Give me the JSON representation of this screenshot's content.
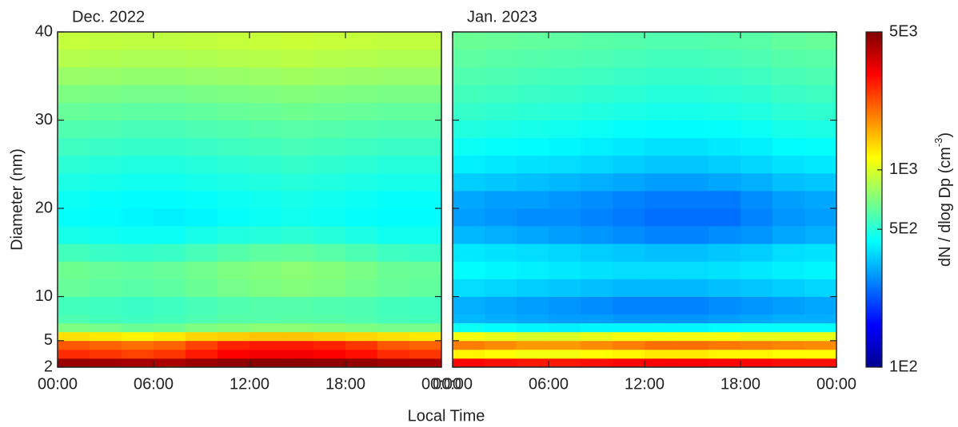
{
  "chart_data": {
    "type": "heatmap",
    "x_label": "Local Time",
    "y_label": "Diameter (nm)",
    "colorbar_label": [
      "dN / dlog Dp (cm",
      "-3",
      ")"
    ],
    "colormap": "jet",
    "color_log": true,
    "clim": [
      100,
      5000
    ],
    "cticks": [
      {
        "value": 100,
        "label": "1E2"
      },
      {
        "value": 500,
        "label": "5E2"
      },
      {
        "value": 1000,
        "label": "1E3"
      },
      {
        "value": 5000,
        "label": "5E3"
      }
    ],
    "xlim": [
      0,
      24
    ],
    "xticks": [
      {
        "value": 0,
        "label": "00:00"
      },
      {
        "value": 6,
        "label": "06:00"
      },
      {
        "value": 12,
        "label": "12:00"
      },
      {
        "value": 18,
        "label": "18:00"
      },
      {
        "value": 24,
        "label": "00:00"
      }
    ],
    "ylim": [
      2,
      40
    ],
    "yticks": [
      2,
      5,
      10,
      20,
      30,
      40
    ],
    "x_edges": [
      0,
      2,
      4,
      6,
      8,
      10,
      12,
      14,
      16,
      18,
      20,
      22,
      24
    ],
    "y_edges": [
      2,
      3,
      4,
      5,
      6,
      7,
      8,
      10,
      12,
      14,
      16,
      18,
      20,
      22,
      24,
      26,
      28,
      30,
      32,
      34,
      36,
      38,
      40
    ],
    "panels": [
      {
        "title": "Dec. 2022",
        "values": [
          [
            4500,
            4400,
            4300,
            4200,
            4500,
            4700,
            4800,
            4800,
            4700,
            4600,
            4400,
            4300
          ],
          [
            2600,
            2500,
            2400,
            2500,
            2800,
            3100,
            3200,
            3200,
            3100,
            2900,
            2600,
            2500
          ],
          [
            2200,
            2100,
            2000,
            2100,
            2400,
            2700,
            2800,
            2800,
            2700,
            2500,
            2200,
            2100
          ],
          [
            1300,
            1250,
            1200,
            1250,
            1350,
            1400,
            1450,
            1450,
            1400,
            1350,
            1300,
            1250
          ],
          [
            700,
            680,
            650,
            660,
            700,
            720,
            740,
            740,
            720,
            700,
            680,
            680
          ],
          [
            580,
            560,
            550,
            560,
            580,
            600,
            600,
            610,
            600,
            590,
            570,
            560
          ],
          [
            560,
            550,
            540,
            550,
            570,
            590,
            600,
            600,
            590,
            580,
            560,
            550
          ],
          [
            640,
            620,
            610,
            620,
            650,
            680,
            700,
            720,
            700,
            670,
            640,
            630
          ],
          [
            660,
            640,
            630,
            640,
            670,
            700,
            720,
            740,
            720,
            690,
            650,
            640
          ],
          [
            560,
            540,
            530,
            540,
            570,
            600,
            620,
            630,
            610,
            580,
            550,
            540
          ],
          [
            470,
            460,
            450,
            450,
            470,
            490,
            500,
            510,
            500,
            480,
            460,
            460
          ],
          [
            440,
            430,
            420,
            410,
            420,
            440,
            450,
            460,
            450,
            440,
            430,
            430
          ],
          [
            450,
            440,
            430,
            430,
            440,
            450,
            460,
            470,
            460,
            450,
            440,
            440
          ],
          [
            480,
            470,
            460,
            460,
            470,
            480,
            490,
            500,
            490,
            480,
            470,
            470
          ],
          [
            510,
            500,
            490,
            490,
            500,
            510,
            520,
            530,
            520,
            510,
            500,
            500
          ],
          [
            550,
            540,
            530,
            530,
            540,
            550,
            560,
            570,
            560,
            550,
            540,
            540
          ],
          [
            590,
            580,
            570,
            570,
            580,
            590,
            600,
            610,
            600,
            590,
            580,
            580
          ],
          [
            640,
            630,
            620,
            620,
            630,
            640,
            650,
            660,
            650,
            640,
            630,
            630
          ],
          [
            700,
            690,
            680,
            680,
            690,
            700,
            710,
            720,
            710,
            700,
            690,
            690
          ],
          [
            780,
            770,
            760,
            760,
            770,
            780,
            790,
            800,
            790,
            780,
            770,
            770
          ],
          [
            860,
            850,
            840,
            840,
            850,
            860,
            870,
            880,
            870,
            860,
            850,
            850
          ],
          [
            920,
            910,
            900,
            900,
            910,
            920,
            930,
            940,
            930,
            920,
            910,
            910
          ]
        ]
      },
      {
        "title": "Jan. 2023",
        "values": [
          [
            3000,
            2900,
            2800,
            2800,
            2900,
            3000,
            3100,
            3100,
            3000,
            3000,
            2900,
            2900
          ],
          [
            1200,
            1150,
            1100,
            1100,
            1150,
            1200,
            1250,
            1250,
            1200,
            1200,
            1150,
            1150
          ],
          [
            1900,
            1800,
            1700,
            1700,
            1800,
            1900,
            2000,
            2000,
            1950,
            1900,
            1850,
            1800
          ],
          [
            1100,
            1050,
            1000,
            1000,
            1050,
            1100,
            1100,
            1100,
            1100,
            1050,
            1050,
            1050
          ],
          [
            450,
            430,
            420,
            410,
            420,
            420,
            420,
            420,
            430,
            440,
            440,
            440
          ],
          [
            330,
            320,
            310,
            300,
            300,
            290,
            290,
            290,
            300,
            310,
            320,
            320
          ],
          [
            320,
            310,
            300,
            290,
            280,
            270,
            270,
            270,
            280,
            290,
            300,
            310
          ],
          [
            380,
            370,
            360,
            350,
            340,
            330,
            330,
            330,
            340,
            350,
            360,
            370
          ],
          [
            430,
            420,
            410,
            400,
            390,
            380,
            380,
            380,
            390,
            400,
            410,
            420
          ],
          [
            400,
            390,
            380,
            370,
            360,
            350,
            340,
            340,
            350,
            360,
            380,
            390
          ],
          [
            330,
            320,
            310,
            300,
            290,
            280,
            270,
            270,
            280,
            290,
            310,
            320
          ],
          [
            300,
            290,
            280,
            280,
            270,
            260,
            250,
            250,
            250,
            270,
            290,
            300
          ],
          [
            310,
            300,
            300,
            290,
            280,
            270,
            260,
            260,
            260,
            280,
            300,
            310
          ],
          [
            360,
            350,
            340,
            330,
            320,
            310,
            300,
            300,
            310,
            320,
            340,
            350
          ],
          [
            410,
            400,
            390,
            380,
            370,
            360,
            350,
            350,
            360,
            370,
            390,
            400
          ],
          [
            450,
            440,
            430,
            420,
            410,
            400,
            390,
            390,
            400,
            410,
            430,
            440
          ],
          [
            490,
            480,
            470,
            460,
            450,
            440,
            430,
            430,
            440,
            450,
            470,
            480
          ],
          [
            530,
            520,
            510,
            500,
            490,
            480,
            470,
            470,
            480,
            490,
            510,
            520
          ],
          [
            560,
            550,
            540,
            530,
            520,
            510,
            500,
            500,
            510,
            520,
            540,
            550
          ],
          [
            590,
            580,
            570,
            560,
            550,
            540,
            530,
            530,
            540,
            550,
            570,
            580
          ],
          [
            620,
            610,
            600,
            590,
            580,
            570,
            560,
            560,
            570,
            580,
            600,
            610
          ],
          [
            650,
            640,
            630,
            620,
            610,
            600,
            590,
            590,
            600,
            610,
            630,
            640
          ]
        ]
      }
    ]
  }
}
